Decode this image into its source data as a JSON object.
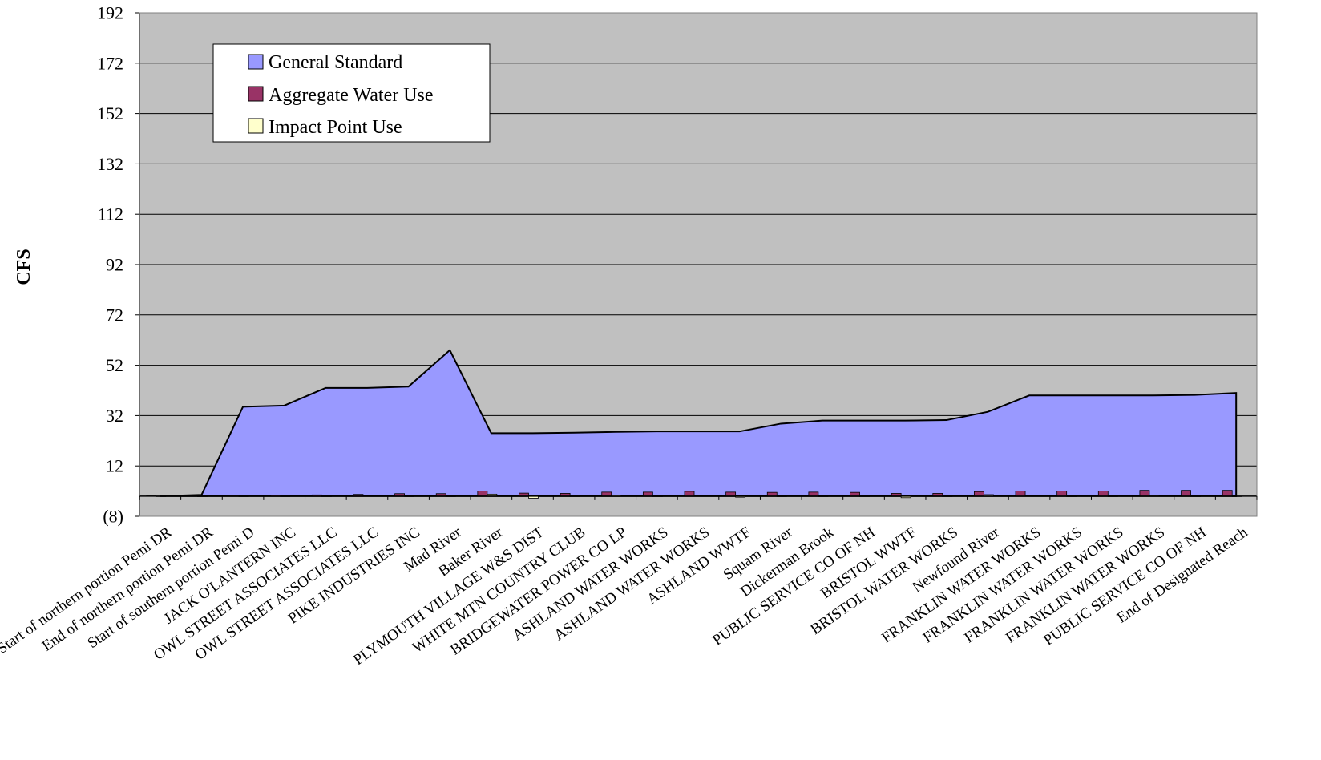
{
  "colors": {
    "plot_background": "#c0c0c0",
    "general_standard": "#9999ff",
    "aggregate_water_use": "#993366",
    "impact_point_use": "#ffffcc",
    "negative_tick": "#ff0000",
    "gridline": "#000000"
  },
  "chart_data": {
    "type": "area",
    "title": "",
    "xlabel": "",
    "ylabel": "CFS",
    "ylim": [
      -8,
      192
    ],
    "yticks": [
      -8,
      12,
      32,
      52,
      72,
      92,
      112,
      132,
      152,
      172,
      192
    ],
    "ytick_labels": [
      "(8)",
      "12",
      "32",
      "52",
      "72",
      "92",
      "112",
      "132",
      "152",
      "172",
      "192"
    ],
    "grid": true,
    "legend_position": "top-left",
    "categories": [
      "Start of northern portion Pemi DR",
      "End of northern portion Pemi DR",
      "Start of southern portion Pemi D",
      "JACK O'LANTERN INC",
      "OWL STREET ASSOCIATES LLC",
      "OWL STREET ASSOCIATES LLC",
      "PIKE INDUSTRIES INC",
      "Mad River",
      "Baker River",
      "PLYMOUTH VILLAGE W&S DIST",
      "WHITE MTN COUNTRY CLUB",
      "BRIDGEWATER POWER CO LP",
      "ASHLAND WATER WORKS",
      "ASHLAND WATER WORKS",
      "ASHLAND WWTF",
      "Squam River",
      "Dickerman Brook",
      "PUBLIC SERVICE CO OF NH",
      "BRISTOL WWTF",
      "BRISTOL WATER WORKS",
      "Newfound River",
      "FRANKLIN WATER WORKS",
      "FRANKLIN WATER WORKS",
      "FRANKLIN WATER WORKS",
      "FRANKLIN WATER WORKS",
      "PUBLIC SERVICE CO OF NH",
      "End of Designated Reach"
    ],
    "series": [
      {
        "name": "General Standard",
        "kind": "area",
        "values": [
          0,
          0.5,
          35.5,
          36,
          43,
          43,
          43.5,
          58,
          25,
          25,
          25.2,
          25.5,
          25.7,
          25.7,
          25.7,
          28.8,
          30,
          30,
          30,
          30.2,
          33.5,
          40,
          40,
          40,
          40,
          40.2,
          41
        ]
      },
      {
        "name": "Aggregate Water Use",
        "kind": "bar",
        "values": [
          0.1,
          0.2,
          0.3,
          0.4,
          0.5,
          0.7,
          1.0,
          1.0,
          2.0,
          1.2,
          1.1,
          1.6,
          1.6,
          1.9,
          1.6,
          1.5,
          1.6,
          1.5,
          1.1,
          1.1,
          1.8,
          2.0,
          2.0,
          2.0,
          2.3,
          2.3,
          2.3
        ]
      },
      {
        "name": "Impact Point Use",
        "kind": "bar",
        "values": [
          0,
          0,
          0,
          0,
          0,
          0.2,
          0,
          0,
          0.8,
          -0.8,
          0,
          0.4,
          0,
          0.2,
          -0.4,
          0,
          0,
          0,
          -0.6,
          0,
          0.6,
          0.2,
          0,
          0,
          0.3,
          0,
          0
        ]
      }
    ]
  }
}
